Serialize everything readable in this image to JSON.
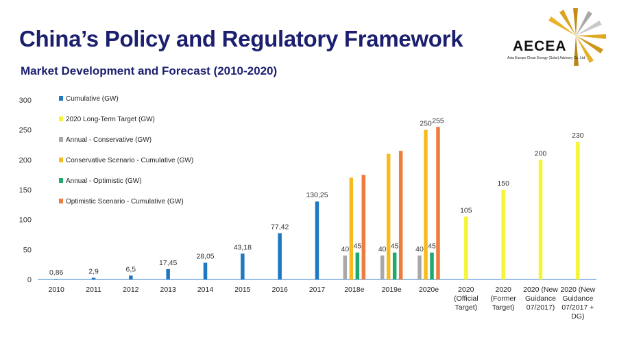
{
  "header": {
    "title": "China’s Policy and Regulatory Framework",
    "subtitle": "Market Development and Forecast (2010-2020)"
  },
  "logo": {
    "name": "AECEA",
    "tagline": "Asia Europe Clean Energy (Solar) Advisory Co. Ltd."
  },
  "chart_data": {
    "type": "bar",
    "title": "Market Development and Forecast (2010-2020)",
    "ylim": [
      0,
      300
    ],
    "yticks": [
      0,
      50,
      100,
      150,
      200,
      250,
      300
    ],
    "categories": [
      "2010",
      "2011",
      "2012",
      "2013",
      "2014",
      "2015",
      "2016",
      "2017",
      "2018e",
      "2019e",
      "2020e",
      "2020 (Official Target)",
      "2020 (Former Target)",
      "2020 (New Guidance 07/2017)",
      "2020 (New Guidance 07/2017 + DG)"
    ],
    "category_lines": [
      [
        "2010"
      ],
      [
        "2011"
      ],
      [
        "2012"
      ],
      [
        "2013"
      ],
      [
        "2014"
      ],
      [
        "2015"
      ],
      [
        "2016"
      ],
      [
        "2017"
      ],
      [
        "2018e"
      ],
      [
        "2019e"
      ],
      [
        "2020e"
      ],
      [
        "2020",
        "(Official",
        "Target)"
      ],
      [
        "2020",
        "(Former",
        "Target)"
      ],
      [
        "2020 (New",
        "Guidance",
        "07/2017)"
      ],
      [
        "2020 (New",
        "Guidance",
        "07/2017 +",
        "DG)"
      ]
    ],
    "series": [
      {
        "name": "Cumulative (GW)",
        "color": "#1f78c1",
        "values": [
          0.86,
          2.9,
          6.5,
          17.45,
          28.05,
          43.18,
          77.42,
          130.25,
          null,
          null,
          null,
          null,
          null,
          null,
          null
        ],
        "labels": [
          "0,86",
          "2,9",
          "6,5",
          "17,45",
          "28,05",
          "43,18",
          "77,42",
          "130,25",
          null,
          null,
          null,
          null,
          null,
          null,
          null
        ]
      },
      {
        "name": "2020 Long-Term Target (GW)",
        "color": "#f5f536",
        "values": [
          null,
          null,
          null,
          null,
          null,
          null,
          null,
          null,
          null,
          null,
          null,
          105,
          150,
          200,
          230
        ],
        "labels": [
          null,
          null,
          null,
          null,
          null,
          null,
          null,
          null,
          null,
          null,
          null,
          "105",
          "150",
          "200",
          "230"
        ]
      },
      {
        "name": "Annual - Conservative (GW)",
        "color": "#a8a8a8",
        "values": [
          null,
          null,
          null,
          null,
          null,
          null,
          null,
          null,
          40,
          40,
          40,
          null,
          null,
          null,
          null
        ],
        "labels": [
          null,
          null,
          null,
          null,
          null,
          null,
          null,
          null,
          "40",
          "40",
          "40",
          null,
          null,
          null,
          null
        ]
      },
      {
        "name": "Conservative Scenario - Cumulative (GW)",
        "color": "#f7bc1c",
        "values": [
          null,
          null,
          null,
          null,
          null,
          null,
          null,
          null,
          170,
          210,
          250,
          null,
          null,
          null,
          null
        ],
        "labels": [
          null,
          null,
          null,
          null,
          null,
          null,
          null,
          null,
          null,
          null,
          "250",
          null,
          null,
          null,
          null
        ]
      },
      {
        "name": "Annual - Optimistic (GW)",
        "color": "#1eaa6e",
        "values": [
          null,
          null,
          null,
          null,
          null,
          null,
          null,
          null,
          45,
          45,
          45,
          null,
          null,
          null,
          null
        ],
        "labels": [
          null,
          null,
          null,
          null,
          null,
          null,
          null,
          null,
          "45",
          "45",
          "45",
          null,
          null,
          null,
          null
        ]
      },
      {
        "name": "Optimistic Scenario - Cumulative (GW)",
        "color": "#ef7c3c",
        "values": [
          null,
          null,
          null,
          null,
          null,
          null,
          null,
          null,
          175,
          215,
          255,
          null,
          null,
          null,
          null
        ],
        "labels": [
          null,
          null,
          null,
          null,
          null,
          null,
          null,
          null,
          null,
          null,
          "255",
          null,
          null,
          null,
          null
        ]
      }
    ],
    "legend_position": "top-left"
  }
}
